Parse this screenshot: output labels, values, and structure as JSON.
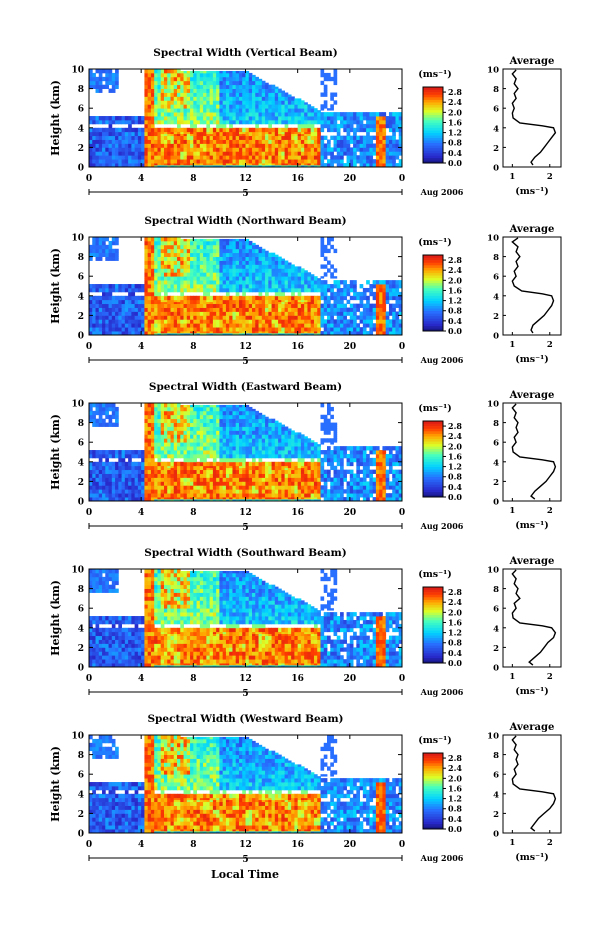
{
  "figure": {
    "xlabel_bottom": "Local Time"
  },
  "chart_data": [
    {
      "type": "heatmap",
      "title": "Spectral Width (Vertical Beam)",
      "ylabel": "Height (km)",
      "x_ticks": [
        "0",
        "4",
        "8",
        "12",
        "16",
        "20",
        "0"
      ],
      "x_range": [
        0,
        24
      ],
      "y_ticks": [
        "0",
        "2",
        "4",
        "6",
        "8",
        "10"
      ],
      "y_range": [
        0,
        10
      ],
      "date_marker": "5",
      "date_label": "Aug 2006",
      "colorbar": {
        "unit": "(ms⁻¹)",
        "ticks": [
          "0.0",
          "0.4",
          "0.8",
          "1.2",
          "1.6",
          "2.0",
          "2.4",
          "2.8"
        ],
        "range": [
          0,
          3.0
        ]
      },
      "side": {
        "title": "Average",
        "xlabel": "(ms⁻¹)",
        "x_ticks": [
          "1",
          "2"
        ],
        "y_ticks": [
          "0",
          "2",
          "4",
          "6",
          "8",
          "10"
        ],
        "heights": [
          0.2,
          0.5,
          1,
          1.5,
          2,
          2.5,
          3,
          3.5,
          4,
          4.2,
          4.5,
          5,
          5.5,
          6,
          6.5,
          7,
          7.5,
          8,
          8.5,
          9,
          9.5,
          9.9
        ],
        "values": [
          1.55,
          1.5,
          1.6,
          1.75,
          1.85,
          1.95,
          2.05,
          2.15,
          2.1,
          1.8,
          1.2,
          1.02,
          1.0,
          1.05,
          1.0,
          1.1,
          1.05,
          1.15,
          1.05,
          1.1,
          1.0,
          1.1
        ]
      }
    },
    {
      "type": "heatmap",
      "title": "Spectral Width (Northward Beam)",
      "ylabel": "Height (km)",
      "x_ticks": [
        "0",
        "4",
        "8",
        "12",
        "16",
        "20",
        "0"
      ],
      "x_range": [
        0,
        24
      ],
      "y_ticks": [
        "0",
        "2",
        "4",
        "6",
        "8",
        "10"
      ],
      "y_range": [
        0,
        10
      ],
      "date_marker": "5",
      "date_label": "Aug 2006",
      "colorbar": {
        "unit": "(ms⁻¹)",
        "ticks": [
          "0.0",
          "0.4",
          "0.8",
          "1.2",
          "1.6",
          "2.0",
          "2.4",
          "2.8"
        ],
        "range": [
          0,
          3.0
        ]
      },
      "side": {
        "title": "Average",
        "xlabel": "(ms⁻¹)",
        "x_ticks": [
          "1",
          "2"
        ],
        "y_ticks": [
          "0",
          "2",
          "4",
          "6",
          "8",
          "10"
        ],
        "heights": [
          0.2,
          0.5,
          1,
          1.5,
          2,
          2.5,
          3,
          3.5,
          4,
          4.2,
          4.5,
          5,
          5.5,
          6,
          6.5,
          7,
          7.5,
          8,
          8.5,
          9,
          9.5,
          9.9
        ],
        "values": [
          1.55,
          1.5,
          1.55,
          1.7,
          1.85,
          1.95,
          2.05,
          2.1,
          2.05,
          1.8,
          1.25,
          1.05,
          1.0,
          1.1,
          1.05,
          1.15,
          1.1,
          1.2,
          1.1,
          1.15,
          1.0,
          1.15
        ]
      }
    },
    {
      "type": "heatmap",
      "title": "Spectral Width (Eastward Beam)",
      "ylabel": "Height (km)",
      "x_ticks": [
        "0",
        "4",
        "8",
        "12",
        "16",
        "20",
        "0"
      ],
      "x_range": [
        0,
        24
      ],
      "y_ticks": [
        "0",
        "2",
        "4",
        "6",
        "8",
        "10"
      ],
      "y_range": [
        0,
        10
      ],
      "date_marker": "5",
      "date_label": "Aug 2006",
      "colorbar": {
        "unit": "(ms⁻¹)",
        "ticks": [
          "0.0",
          "0.4",
          "0.8",
          "1.2",
          "1.6",
          "2.0",
          "2.4",
          "2.8"
        ],
        "range": [
          0,
          3.0
        ]
      },
      "side": {
        "title": "Average",
        "xlabel": "(ms⁻¹)",
        "x_ticks": [
          "1",
          "2"
        ],
        "y_ticks": [
          "0",
          "2",
          "4",
          "6",
          "8",
          "10"
        ],
        "heights": [
          0.2,
          0.5,
          1,
          1.5,
          2,
          2.5,
          3,
          3.5,
          4,
          4.2,
          4.5,
          5,
          5.5,
          6,
          6.5,
          7,
          7.5,
          8,
          8.5,
          9,
          9.5,
          9.9
        ],
        "values": [
          1.6,
          1.5,
          1.6,
          1.75,
          1.9,
          2.0,
          2.1,
          2.15,
          2.1,
          1.8,
          1.2,
          1.02,
          1.0,
          1.1,
          1.05,
          1.15,
          1.1,
          1.15,
          1.05,
          1.1,
          1.0,
          1.1
        ]
      }
    },
    {
      "type": "heatmap",
      "title": "Spectral Width (Southward Beam)",
      "ylabel": "Height (km)",
      "x_ticks": [
        "0",
        "4",
        "8",
        "12",
        "16",
        "20",
        "0"
      ],
      "x_range": [
        0,
        24
      ],
      "y_ticks": [
        "0",
        "2",
        "4",
        "6",
        "8",
        "10"
      ],
      "y_range": [
        0,
        10
      ],
      "date_marker": "5",
      "date_label": "Aug 2006",
      "colorbar": {
        "unit": "(ms⁻¹)",
        "ticks": [
          "0.0",
          "0.4",
          "0.8",
          "1.2",
          "1.6",
          "2.0",
          "2.4",
          "2.8"
        ],
        "range": [
          0,
          3.0
        ]
      },
      "side": {
        "title": "Average",
        "xlabel": "(ms⁻¹)",
        "x_ticks": [
          "1",
          "2"
        ],
        "y_ticks": [
          "0",
          "2",
          "4",
          "6",
          "8",
          "10"
        ],
        "heights": [
          0.2,
          0.5,
          1,
          1.5,
          2,
          2.5,
          3,
          3.5,
          4,
          4.2,
          4.5,
          5,
          5.5,
          6,
          6.5,
          7,
          7.5,
          8,
          8.5,
          9,
          9.5,
          9.9
        ],
        "values": [
          1.55,
          1.45,
          1.6,
          1.75,
          1.85,
          1.95,
          2.1,
          2.15,
          2.05,
          1.8,
          1.2,
          1.02,
          1.0,
          1.1,
          1.05,
          1.2,
          1.1,
          1.15,
          1.05,
          1.1,
          1.0,
          1.1
        ]
      }
    },
    {
      "type": "heatmap",
      "title": "Spectral Width (Westward Beam)",
      "ylabel": "Height (km)",
      "x_ticks": [
        "0",
        "4",
        "8",
        "12",
        "16",
        "20",
        "0"
      ],
      "x_range": [
        0,
        24
      ],
      "y_ticks": [
        "0",
        "2",
        "4",
        "6",
        "8",
        "10"
      ],
      "y_range": [
        0,
        10
      ],
      "date_marker": "5",
      "date_label": "Aug 2006",
      "colorbar": {
        "unit": "(ms⁻¹)",
        "ticks": [
          "0.0",
          "0.4",
          "0.8",
          "1.2",
          "1.6",
          "2.0",
          "2.4",
          "2.8"
        ],
        "range": [
          0,
          3.0
        ]
      },
      "side": {
        "title": "Average",
        "xlabel": "(ms⁻¹)",
        "x_ticks": [
          "1",
          "2"
        ],
        "y_ticks": [
          "0",
          "2",
          "4",
          "6",
          "8",
          "10"
        ],
        "heights": [
          0.2,
          0.5,
          1,
          1.5,
          2,
          2.5,
          3,
          3.5,
          4,
          4.2,
          4.5,
          5,
          5.5,
          6,
          6.5,
          7,
          7.5,
          8,
          8.5,
          9,
          9.5,
          9.9
        ],
        "values": [
          1.6,
          1.5,
          1.6,
          1.7,
          1.85,
          2.0,
          2.1,
          2.15,
          2.1,
          1.8,
          1.2,
          1.02,
          1.0,
          1.1,
          1.05,
          1.15,
          1.1,
          1.15,
          1.05,
          1.1,
          1.0,
          1.1
        ]
      }
    }
  ]
}
